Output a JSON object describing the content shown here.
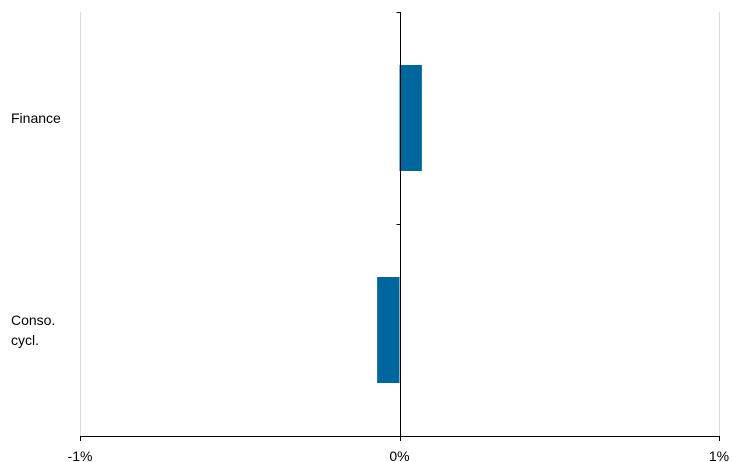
{
  "chart_data": {
    "type": "bar",
    "orientation": "horizontal",
    "categories": [
      "Finance",
      "Conso. cycl."
    ],
    "category_label_lines": [
      [
        "Finance"
      ],
      [
        "Conso.",
        "cycl."
      ]
    ],
    "values": [
      0.07,
      -0.07
    ],
    "x_unit": "%",
    "xlim": [
      -1,
      1
    ],
    "x_ticks": [
      -1,
      0,
      1
    ],
    "x_tick_labels": [
      "-1%",
      "0%",
      "1%"
    ],
    "title": "",
    "xlabel": "",
    "ylabel": "",
    "grid": "vertical",
    "legend": "none",
    "colors": {
      "bar": "#00679E",
      "grid": "#D9D9D9",
      "axis": "#000000"
    }
  }
}
